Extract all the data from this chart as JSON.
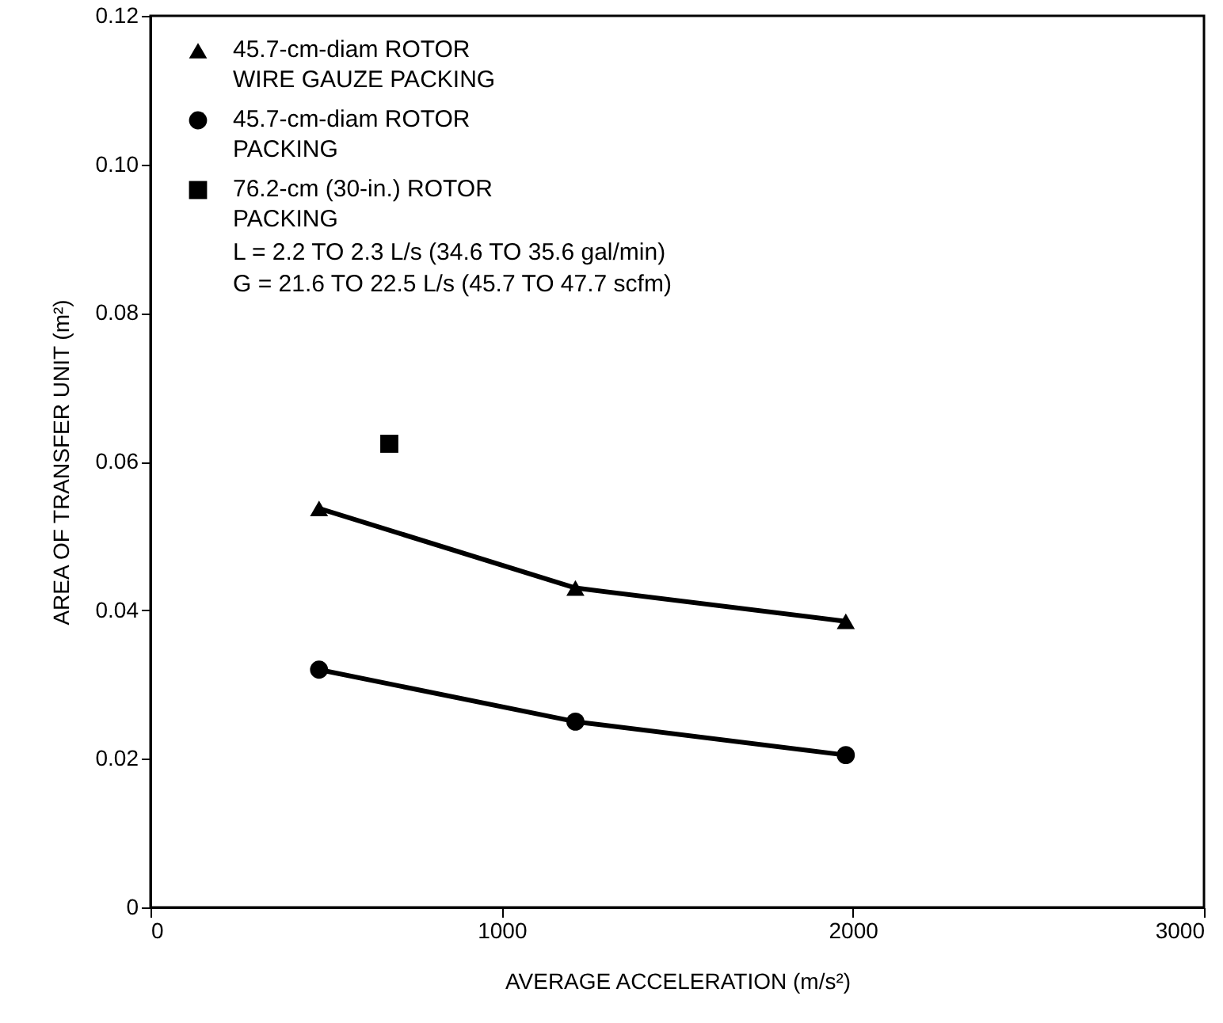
{
  "chart_data": {
    "type": "line",
    "xlabel": "AVERAGE ACCELERATION (m/s²)",
    "ylabel": "AREA OF TRANSFER UNIT (m²)",
    "xlim": [
      0,
      3000
    ],
    "xticks": [
      0,
      1000,
      2000,
      3000
    ],
    "ylim": [
      0,
      0.12
    ],
    "yticks": [
      0,
      0.02,
      0.04,
      0.06,
      0.08,
      {
        "value": 0.1,
        "label": "0.10"
      },
      0.12
    ],
    "grid": false,
    "legend": "top left",
    "series": [
      {
        "name": "45.7-cm-diam  ROTOR\nWIRE GAUZE PACKING",
        "color": "#000000",
        "marker": "triangle",
        "x": [
          480,
          1210,
          1980
        ],
        "values": [
          0.0537,
          0.043,
          0.0385
        ]
      },
      {
        "name": "45.7-cm-diam  ROTOR\nPACKING",
        "color": "#000000",
        "marker": "circle",
        "x": [
          480,
          1210,
          1980
        ],
        "values": [
          0.032,
          0.025,
          0.0205
        ]
      },
      {
        "name": "76.2-cm (30-in.) ROTOR\nPACKING",
        "color": "#000000",
        "marker": "square",
        "type": "scatter",
        "x": [
          680
        ],
        "values": [
          0.0624
        ]
      }
    ],
    "annotations": [
      "L = 2.2 TO 2.3 L/s (34.6 TO 35.6 gal/min)",
      "G = 21.6 TO 22.5 L/s (45.7 TO 47.7 scfm)"
    ]
  }
}
